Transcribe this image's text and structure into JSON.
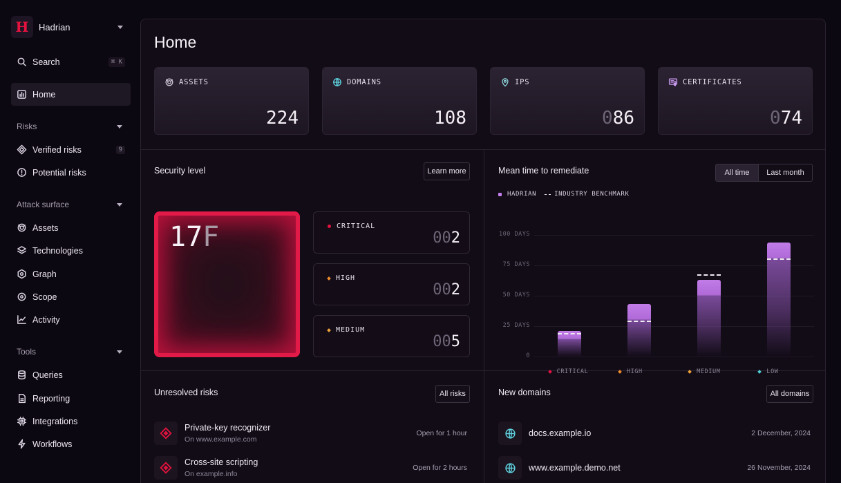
{
  "sidebar": {
    "org_name": "Hadrian",
    "search_label": "Search",
    "search_shortcut": "⌘ K",
    "home_label": "Home",
    "sections": {
      "risks": "Risks",
      "attack_surface": "Attack surface",
      "tools": "Tools"
    },
    "risks_items": [
      {
        "label": "Verified risks",
        "badge": "9",
        "icon": "diamond-icon"
      },
      {
        "label": "Potential risks",
        "icon": "alert-circle-icon"
      }
    ],
    "attack_items": [
      {
        "label": "Assets",
        "icon": "assets-icon"
      },
      {
        "label": "Technologies",
        "icon": "layers-icon"
      },
      {
        "label": "Graph",
        "icon": "graph-icon"
      },
      {
        "label": "Scope",
        "icon": "target-icon"
      },
      {
        "label": "Activity",
        "icon": "activity-icon"
      }
    ],
    "tools_items": [
      {
        "label": "Queries",
        "icon": "database-icon"
      },
      {
        "label": "Reporting",
        "icon": "report-icon"
      },
      {
        "label": "Integrations",
        "icon": "chip-icon"
      },
      {
        "label": "Workflows",
        "icon": "bolt-icon"
      }
    ]
  },
  "page": {
    "title": "Home"
  },
  "stats": [
    {
      "label": "ASSETS",
      "value": "224",
      "prefix": "",
      "icon": "assets-icon"
    },
    {
      "label": "DOMAINS",
      "value": "108",
      "prefix": "",
      "icon": "globe-icon"
    },
    {
      "label": "IPS",
      "value": "86",
      "prefix": "0",
      "icon": "pin-icon"
    },
    {
      "label": "CERTIFICATES",
      "value": "74",
      "prefix": "0",
      "icon": "certificate-icon"
    }
  ],
  "security": {
    "title": "Security level",
    "learn_more": "Learn more",
    "score": "17",
    "grade": "F",
    "severities": [
      {
        "label": "CRITICAL",
        "prefix": "00",
        "value": "2",
        "color": "#e5123f"
      },
      {
        "label": "HIGH",
        "prefix": "00",
        "value": "2",
        "color": "#f08c2a"
      },
      {
        "label": "MEDIUM",
        "prefix": "00",
        "value": "5",
        "color": "#f0a33a"
      }
    ]
  },
  "mttr": {
    "title": "Mean time to remediate",
    "toggle": {
      "all_time": "All time",
      "last_month": "Last month"
    },
    "legend": {
      "hadrian": "HADRIAN",
      "benchmark": "INDUSTRY BENCHMARK"
    }
  },
  "chart_data": {
    "type": "bar",
    "title": "Mean time to remediate",
    "categories": [
      "CRITICAL",
      "HIGH",
      "MEDIUM",
      "LOW"
    ],
    "category_colors": [
      "#e5123f",
      "#f08c2a",
      "#f0a33a",
      "#4fd0d6"
    ],
    "series": [
      {
        "name": "HADRIAN",
        "values": [
          21,
          43,
          63,
          94
        ],
        "color": "#c07ae6"
      },
      {
        "name": "INDUSTRY BENCHMARK",
        "values": [
          19,
          29,
          67,
          80
        ],
        "style": "dashed"
      }
    ],
    "yticks": [
      "100 DAYS",
      "75 DAYS",
      "50 DAYS",
      "25 DAYS",
      "0"
    ],
    "ylim": [
      0,
      100
    ],
    "legend_position": "top-left",
    "grid": true
  },
  "unresolved": {
    "title": "Unresolved risks",
    "button": "All risks",
    "items": [
      {
        "title": "Private-key recognizer",
        "subtitle": "On www.example.com",
        "meta": "Open for 1 hour"
      },
      {
        "title": "Cross-site scripting",
        "subtitle": "On example.info",
        "meta": "Open for 2 hours"
      }
    ]
  },
  "new_domains": {
    "title": "New domains",
    "button": "All domains",
    "items": [
      {
        "domain": "docs.example.io",
        "date": "2 December, 2024"
      },
      {
        "domain": "www.example.demo.net",
        "date": "26 November, 2024"
      }
    ]
  }
}
